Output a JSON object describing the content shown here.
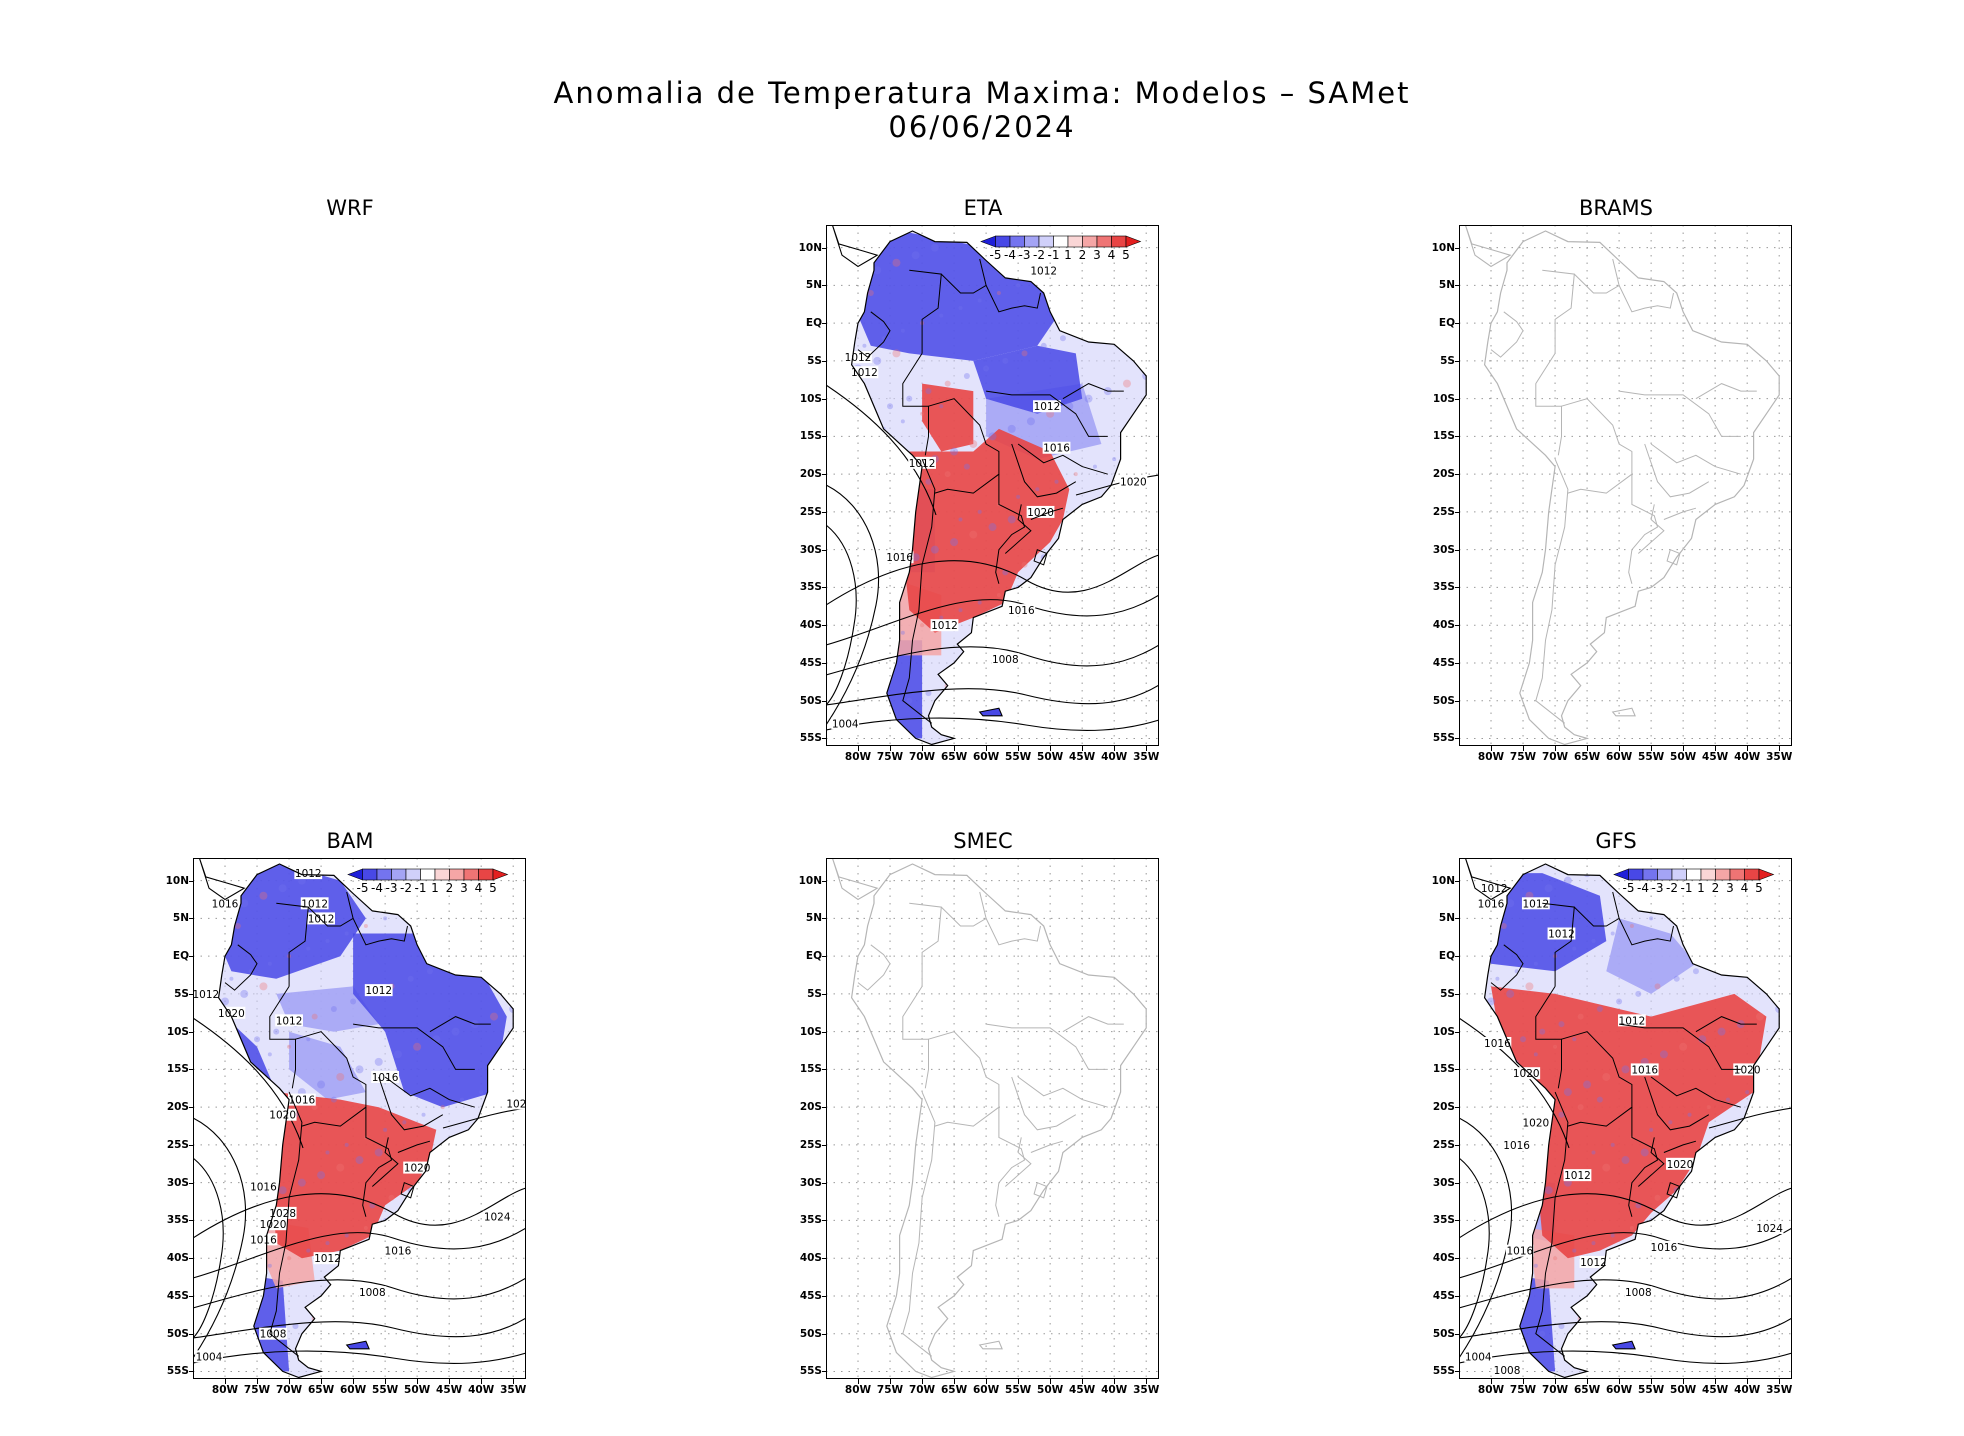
{
  "chart_data": {
    "type": "heatmap",
    "title": "Anomalia de Temperatura Maxima: Modelos – SAMet",
    "subtitle": "06/06/2024",
    "xlim": [
      -85,
      -33
    ],
    "ylim": [
      -56,
      13
    ],
    "lat_ticks": [
      "10N",
      "5N",
      "EQ",
      "5S",
      "10S",
      "15S",
      "20S",
      "25S",
      "30S",
      "35S",
      "40S",
      "45S",
      "50S",
      "55S"
    ],
    "lon_ticks": [
      "80W",
      "75W",
      "70W",
      "65W",
      "60W",
      "55W",
      "50W",
      "45W",
      "40W",
      "35W"
    ],
    "colorbar": {
      "values": [
        -5,
        -4,
        -3,
        -2,
        -1,
        1,
        2,
        3,
        4,
        5
      ],
      "labels": [
        "-5",
        "-4",
        "-3",
        "-2",
        "-1",
        "1",
        "2",
        "3",
        "4",
        "5"
      ]
    },
    "panels": [
      {
        "id": "wrf",
        "name": "WRF",
        "has_map": false
      },
      {
        "id": "eta",
        "name": "ETA",
        "has_map": true,
        "has_data": true,
        "isobars": [
          {
            "label": "1012",
            "lon": -51,
            "lat": 7
          },
          {
            "label": "1012",
            "lon": -80,
            "lat": -4.5
          },
          {
            "label": "1012",
            "lon": -79,
            "lat": -6.5
          },
          {
            "label": "1012",
            "lon": -50.5,
            "lat": -11
          },
          {
            "label": "1016",
            "lon": -49,
            "lat": -16.5
          },
          {
            "label": "1012",
            "lon": -70,
            "lat": -18.5
          },
          {
            "label": "1020",
            "lon": -37,
            "lat": -21
          },
          {
            "label": "1020",
            "lon": -51.5,
            "lat": -25
          },
          {
            "label": "1016",
            "lon": -73.5,
            "lat": -31
          },
          {
            "label": "1016",
            "lon": -54.5,
            "lat": -38
          },
          {
            "label": "1012",
            "lon": -66.5,
            "lat": -40
          },
          {
            "label": "1008",
            "lon": -57,
            "lat": -44.5
          },
          {
            "label": "1004",
            "lon": -82,
            "lat": -53
          }
        ]
      },
      {
        "id": "brams",
        "name": "BRAMS",
        "has_map": true,
        "has_data": false
      },
      {
        "id": "bam",
        "name": "BAM",
        "has_map": true,
        "has_data": true,
        "isobars": [
          {
            "label": "1012",
            "lon": -67,
            "lat": 11
          },
          {
            "label": "1016",
            "lon": -80,
            "lat": 7
          },
          {
            "label": "1012",
            "lon": -66,
            "lat": 7
          },
          {
            "label": "1012",
            "lon": -65,
            "lat": 5
          },
          {
            "label": "1012",
            "lon": -56,
            "lat": -4.5
          },
          {
            "label": "1012",
            "lon": -83,
            "lat": -5
          },
          {
            "label": "1020",
            "lon": -79,
            "lat": -7.5
          },
          {
            "label": "1012",
            "lon": -70,
            "lat": -8.5
          },
          {
            "label": "1016",
            "lon": -55,
            "lat": -16
          },
          {
            "label": "1016",
            "lon": -68,
            "lat": -19
          },
          {
            "label": "1020",
            "lon": -71,
            "lat": -21
          },
          {
            "label": "102",
            "lon": -34.5,
            "lat": -19.5
          },
          {
            "label": "1020",
            "lon": -50,
            "lat": -28
          },
          {
            "label": "1016",
            "lon": -74,
            "lat": -30.5
          },
          {
            "label": "1024",
            "lon": -37.5,
            "lat": -34.5
          },
          {
            "label": "1028",
            "lon": -71,
            "lat": -34
          },
          {
            "label": "1020",
            "lon": -72.5,
            "lat": -35.5
          },
          {
            "label": "1016",
            "lon": -74,
            "lat": -37.5
          },
          {
            "label": "1016",
            "lon": -53,
            "lat": -39
          },
          {
            "label": "1012",
            "lon": -64,
            "lat": -40
          },
          {
            "label": "1008",
            "lon": -57,
            "lat": -44.5
          },
          {
            "label": "1008",
            "lon": -72.5,
            "lat": -50
          },
          {
            "label": "1004",
            "lon": -82.5,
            "lat": -53
          }
        ]
      },
      {
        "id": "smec",
        "name": "SMEC",
        "has_map": true,
        "has_data": false
      },
      {
        "id": "gfs",
        "name": "GFS",
        "has_map": true,
        "has_data": true,
        "isobars": [
          {
            "label": "1012",
            "lon": -79.5,
            "lat": 9
          },
          {
            "label": "1016",
            "lon": -80,
            "lat": 7
          },
          {
            "label": "1012",
            "lon": -73,
            "lat": 7
          },
          {
            "label": "1012",
            "lon": -69,
            "lat": 3
          },
          {
            "label": "1012",
            "lon": -58,
            "lat": -8.5
          },
          {
            "label": "1016",
            "lon": -79,
            "lat": -11.5
          },
          {
            "label": "1016",
            "lon": -56,
            "lat": -15
          },
          {
            "label": "1020",
            "lon": -74.5,
            "lat": -15.5
          },
          {
            "label": "1020",
            "lon": -40,
            "lat": -15
          },
          {
            "label": "1020",
            "lon": -73,
            "lat": -22
          },
          {
            "label": "1016",
            "lon": -76,
            "lat": -25
          },
          {
            "label": "1020",
            "lon": -50.5,
            "lat": -27.5
          },
          {
            "label": "1012",
            "lon": -66.5,
            "lat": -29
          },
          {
            "label": "1024",
            "lon": -36.5,
            "lat": -36
          },
          {
            "label": "1016",
            "lon": -53,
            "lat": -38.5
          },
          {
            "label": "1016",
            "lon": -75.5,
            "lat": -39
          },
          {
            "label": "1012",
            "lon": -64,
            "lat": -40.5
          },
          {
            "label": "1008",
            "lon": -57,
            "lat": -44.5
          },
          {
            "label": "1004",
            "lon": -82,
            "lat": -53
          },
          {
            "label": "1008",
            "lon": -77.5,
            "lat": -54.8
          }
        ]
      }
    ]
  },
  "colors": {
    "scale": [
      "#1f1fd9",
      "#4848e6",
      "#7474ef",
      "#a4a4f5",
      "#d0d0fa",
      "#ffffff",
      "#fad6d6",
      "#f5a6a6",
      "#ef7474",
      "#e84545",
      "#e31f1f"
    ],
    "coast_gray": "#b5b5b5",
    "coast_black": "#000000"
  }
}
